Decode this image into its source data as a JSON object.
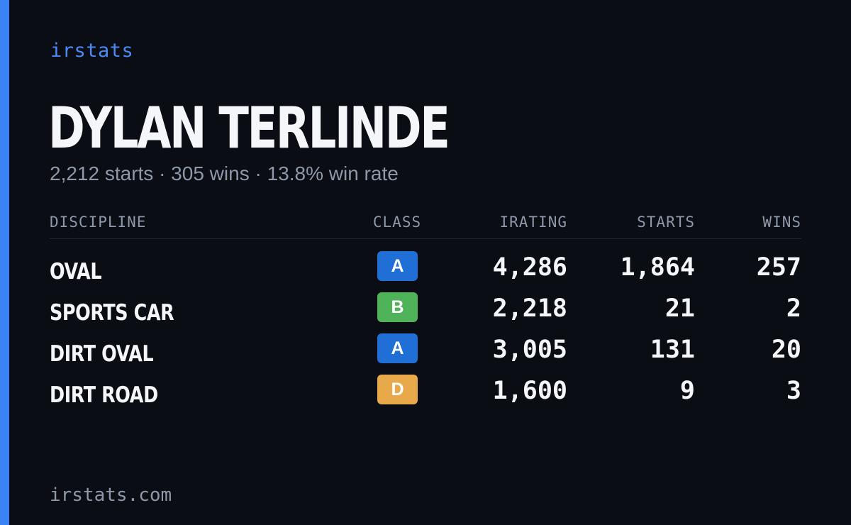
{
  "brand": "irstats",
  "driver": {
    "name": "DYLAN TERLINDE",
    "summary": "2,212 starts · 305 wins · 13.8% win rate"
  },
  "table": {
    "headers": {
      "discipline": "DISCIPLINE",
      "class": "CLASS",
      "irating": "IRATING",
      "starts": "STARTS",
      "wins": "WINS"
    },
    "rows": [
      {
        "discipline": "OVAL",
        "class": "A",
        "class_color": "#1f6fd6",
        "irating": "4,286",
        "starts": "1,864",
        "wins": "257"
      },
      {
        "discipline": "SPORTS CAR",
        "class": "B",
        "class_color": "#4fb35a",
        "irating": "2,218",
        "starts": "21",
        "wins": "2"
      },
      {
        "discipline": "DIRT OVAL",
        "class": "A",
        "class_color": "#1f6fd6",
        "irating": "3,005",
        "starts": "131",
        "wins": "20"
      },
      {
        "discipline": "DIRT ROAD",
        "class": "D",
        "class_color": "#e8a94a",
        "irating": "1,600",
        "starts": "9",
        "wins": "3"
      }
    ]
  },
  "footer": "irstats.com",
  "colors": {
    "background": "#0a0d14",
    "accent": "#3b82f6",
    "text_primary": "#f4f6fa",
    "text_secondary": "#8e98a9"
  }
}
